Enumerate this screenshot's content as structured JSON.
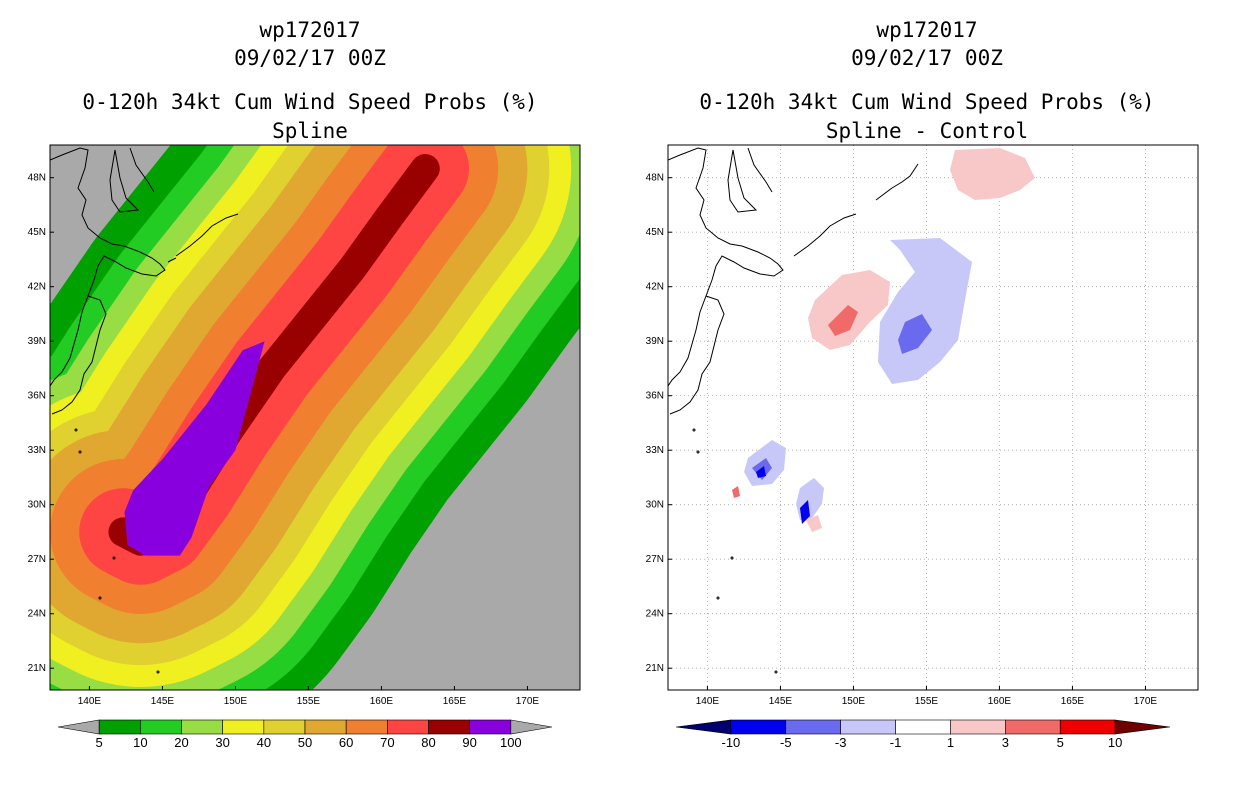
{
  "left": {
    "title1": "wp172017",
    "title2": "09/02/17 00Z",
    "title3": "0-120h 34kt Cum Wind Speed Probs (%)",
    "title4": "Spline"
  },
  "right": {
    "title1": "wp172017",
    "title2": "09/02/17 00Z",
    "title3": "0-120h 34kt Cum Wind Speed Probs (%)",
    "title4": "Spline - Control"
  },
  "colors": {
    "land_bg": "#a9a9a9",
    "p5": "#00a000",
    "p10": "#22cc22",
    "p20": "#99dd44",
    "p30": "#f0f020",
    "p40": "#e0d030",
    "p50": "#e0a830",
    "p60": "#f08030",
    "p70": "#ff4444",
    "p80": "#990000",
    "p90": "#8800dd",
    "d_m10": "#00006e",
    "d_m5": "#0000ee",
    "d_m3": "#6a6aef",
    "d_m1": "#c8c8f8",
    "d_0": "#ffffff",
    "d_p1": "#f8c8c8",
    "d_p3": "#f06a6a",
    "d_p5": "#ee0000",
    "d_p10": "#6e0000"
  },
  "chart_data": [
    {
      "type": "heatmap",
      "name": "Spline",
      "title": "0-120h 34kt Cum Wind Speed Probs (%)",
      "subtitle": "Spline",
      "x_ticks": [
        "140E",
        "145E",
        "150E",
        "155E",
        "160E",
        "165E",
        "170E"
      ],
      "y_ticks": [
        "48N",
        "45N",
        "42N",
        "39N",
        "36N",
        "33N",
        "30N",
        "27N",
        "24N",
        "21N"
      ],
      "xlim": [
        137.3,
        173.6
      ],
      "ylim": [
        19.8,
        49.8
      ],
      "colorbar_labels": [
        "5",
        "10",
        "20",
        "30",
        "40",
        "50",
        "60",
        "70",
        "80",
        "90",
        "100"
      ],
      "track": {
        "lon": [
          142.3,
          143.5,
          145.0,
          147.0,
          149.5,
          152.5,
          155.5,
          158.0,
          160.5,
          163.0
        ],
        "lat": [
          28.5,
          28.0,
          28.6,
          30.8,
          34.0,
          37.5,
          40.5,
          43.0,
          45.8,
          48.5
        ],
        "widths_deg": [
          2,
          6,
          10,
          14,
          17,
          20,
          23,
          26,
          30
        ]
      }
    },
    {
      "type": "heatmap",
      "name": "Spline - Control",
      "title": "0-120h 34kt Cum Wind Speed Probs (%)",
      "subtitle": "Spline - Control",
      "x_ticks": [
        "140E",
        "145E",
        "150E",
        "155E",
        "160E",
        "165E",
        "170E"
      ],
      "y_ticks": [
        "48N",
        "45N",
        "42N",
        "39N",
        "36N",
        "33N",
        "30N",
        "27N",
        "24N",
        "21N"
      ],
      "xlim": [
        137.3,
        173.6
      ],
      "ylim": [
        19.8,
        49.8
      ],
      "colorbar_labels": [
        "-10",
        "-5",
        "-3",
        "-1",
        "1",
        "3",
        "5",
        "10"
      ]
    }
  ]
}
